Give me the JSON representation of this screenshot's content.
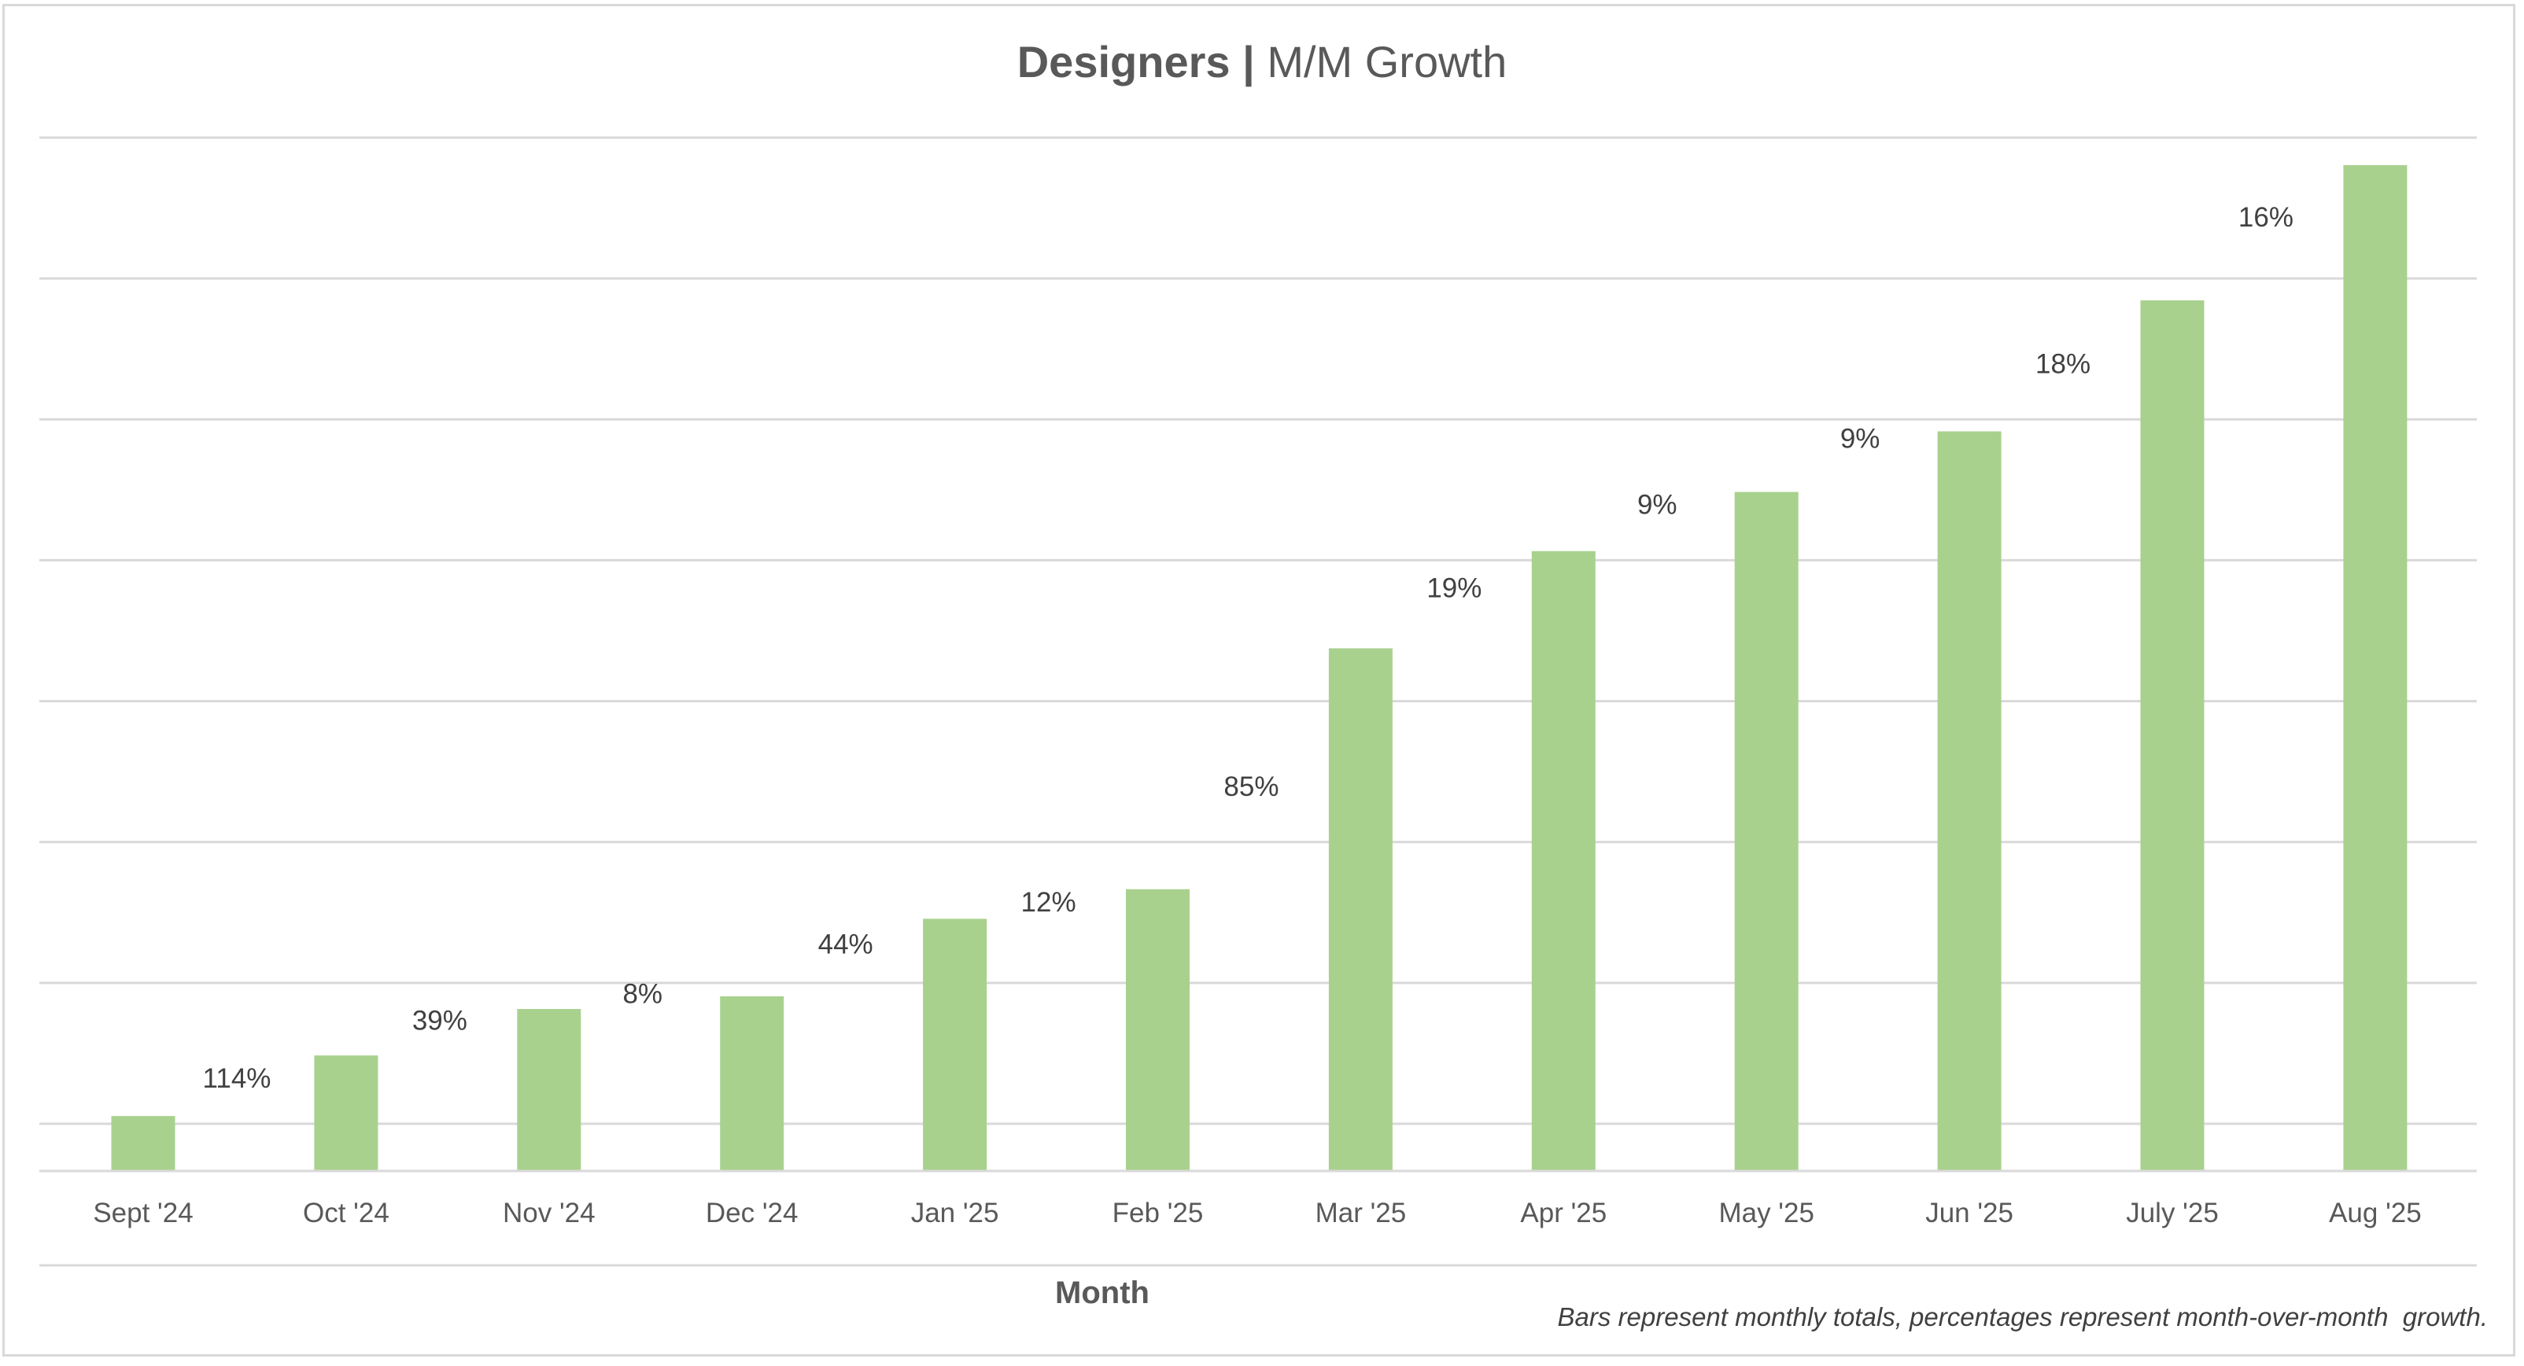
{
  "chart_data": {
    "type": "bar",
    "title": {
      "bold_part": "Designers",
      "separator": "|",
      "regular_part": "M/M Growth"
    },
    "xlabel": "Month",
    "ylabel": "",
    "y_axis_labels_visible": false,
    "grid": true,
    "units_note": "Relative units (one gridline interval = 1); no y-axis values shown",
    "ylim": [
      0,
      7.335
    ],
    "gridlines": [
      0.335,
      1.335,
      2.335,
      3.335,
      4.335,
      5.335,
      6.335,
      7.335
    ],
    "bar_color": "#a9d18e",
    "categories": [
      "Sept '24",
      "Oct '24",
      "Nov '24",
      "Dec '24",
      "Jan '25",
      "Feb '25",
      "Mar '25",
      "Apr '25",
      "May '25",
      "Jun '25",
      "July '25",
      "Aug '25"
    ],
    "values": [
      0.39,
      0.82,
      1.15,
      1.24,
      1.79,
      2.0,
      3.71,
      4.4,
      4.82,
      5.25,
      6.18,
      7.14
    ],
    "growth_labels": [
      {
        "between": [
          "Sept '24",
          "Oct '24"
        ],
        "text": "114%",
        "value": 114,
        "level": 0.66
      },
      {
        "between": [
          "Oct '24",
          "Nov '24"
        ],
        "text": "39%",
        "value": 39,
        "level": 1.07
      },
      {
        "between": [
          "Nov '24",
          "Dec '24"
        ],
        "text": "8%",
        "value": 8,
        "level": 1.26
      },
      {
        "between": [
          "Dec '24",
          "Jan '25"
        ],
        "text": "44%",
        "value": 44,
        "level": 1.61
      },
      {
        "between": [
          "Jan '25",
          "Feb '25"
        ],
        "text": "12%",
        "value": 12,
        "level": 1.91
      },
      {
        "between": [
          "Feb '25",
          "Mar '25"
        ],
        "text": "85%",
        "value": 85,
        "level": 2.73
      },
      {
        "between": [
          "Mar '25",
          "Apr '25"
        ],
        "text": "19%",
        "value": 19,
        "level": 4.14
      },
      {
        "between": [
          "Apr '25",
          "May '25"
        ],
        "text": "9%",
        "value": 9,
        "level": 4.73
      },
      {
        "between": [
          "May '25",
          "Jun '25"
        ],
        "text": "9%",
        "value": 9,
        "level": 5.2
      },
      {
        "between": [
          "Jun '25",
          "July '25"
        ],
        "text": "18%",
        "value": 18,
        "level": 5.73
      },
      {
        "between": [
          "July '25",
          "Aug '25"
        ],
        "text": "16%",
        "value": 16,
        "level": 6.77
      }
    ],
    "footnote": "Bars represent monthly totals, percentages represent month-over-month  growth.",
    "legend": "none"
  }
}
